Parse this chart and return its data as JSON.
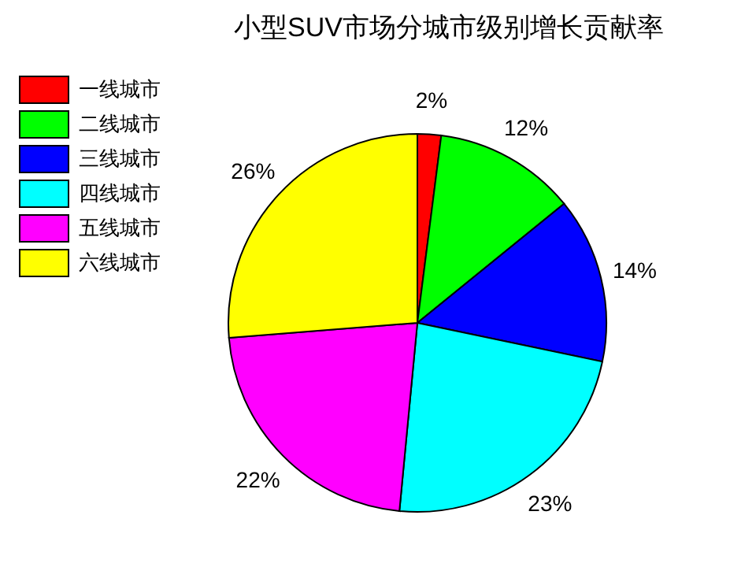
{
  "chart_data": {
    "type": "pie",
    "title": "小型SUV市场分城市级别增长贡献率",
    "categories": [
      "一线城市",
      "二线城市",
      "三线城市",
      "四线城市",
      "五线城市",
      "六线城市"
    ],
    "values": [
      2,
      12,
      14,
      23,
      22,
      26
    ],
    "colors": [
      "#ff0000",
      "#00ff00",
      "#0000ff",
      "#00ffff",
      "#ff00ff",
      "#ffff00"
    ],
    "value_labels": [
      "2%",
      "12%",
      "14%",
      "23%",
      "22%",
      "26%"
    ],
    "legend": "top left"
  }
}
